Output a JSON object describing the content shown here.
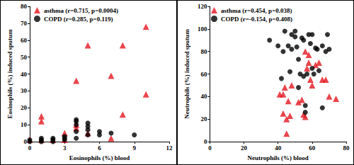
{
  "chart_data": [
    {
      "type": "scatter",
      "x_label": "Eosinophils (%) blood",
      "y_label": "Eosinophils (%) induced sputum",
      "xlim": [
        0,
        12
      ],
      "xticks": [
        0,
        3,
        6,
        9,
        12
      ],
      "ylim": [
        0,
        80
      ],
      "yticks": [
        0,
        10,
        20,
        30,
        40,
        50,
        60,
        70,
        80
      ],
      "grid": false,
      "legend": "upper left",
      "series": [
        {
          "name": "asthma (r=0.715, p=0.0004)",
          "color": "#e3171f",
          "marker": "triangle",
          "x": [
            10,
            5,
            8,
            4,
            7,
            10,
            8,
            1,
            1,
            4,
            3,
            7,
            0,
            1,
            2,
            3,
            4,
            5
          ],
          "values": [
            68,
            57,
            57,
            36,
            39,
            28,
            16,
            15,
            12,
            10,
            5,
            2,
            1,
            1,
            1,
            1,
            8,
            5
          ]
        },
        {
          "name": "COPD (r=0.285, p=0.119)",
          "color": "#000000",
          "marker": "circle",
          "x": [
            5,
            5,
            5,
            6,
            6,
            4,
            4,
            4,
            4,
            3,
            2,
            1,
            0,
            0,
            1,
            2,
            3,
            4,
            7,
            9,
            5,
            1,
            2,
            3
          ],
          "values": [
            11,
            9,
            7,
            6,
            4,
            13,
            12,
            10,
            6,
            3,
            2,
            1,
            0,
            1,
            0,
            1,
            1,
            2,
            5,
            4,
            4,
            2,
            0,
            2
          ]
        }
      ]
    },
    {
      "type": "scatter",
      "x_label": "Neutrophils (%) blood",
      "y_label": "Neutrophils (%) induced sputum",
      "xlim": [
        0,
        80
      ],
      "xticks": [
        0,
        20,
        40,
        60,
        80
      ],
      "ylim": [
        0,
        120
      ],
      "yticks": [
        0,
        20,
        40,
        60,
        80,
        100,
        120
      ],
      "grid": false,
      "legend": "upper left",
      "series": [
        {
          "name": "asthma (r=0.454, p=0.038)",
          "color": "#e3171f",
          "marker": "triangle",
          "x": [
            44,
            46,
            47,
            43,
            45,
            41,
            43,
            45,
            48,
            52,
            54,
            56,
            55,
            57,
            58,
            59,
            60,
            62,
            64,
            66,
            68,
            70,
            74,
            56,
            58
          ],
          "values": [
            48,
            36,
            23,
            25,
            20,
            42,
            42,
            7,
            50,
            35,
            37,
            22,
            24,
            65,
            70,
            55,
            50,
            68,
            70,
            55,
            55,
            40,
            38,
            80,
            77
          ]
        },
        {
          "name": "COPD (r=-0.154, p=0.408)",
          "color": "#000000",
          "marker": "circle",
          "x": [
            35,
            40,
            43,
            44,
            46,
            48,
            48,
            50,
            50,
            51,
            52,
            53,
            54,
            55,
            56,
            56,
            57,
            58,
            59,
            60,
            60,
            61,
            62,
            63,
            64,
            66,
            69,
            70,
            68,
            42,
            47,
            52,
            55,
            66
          ],
          "values": [
            90,
            85,
            80,
            98,
            85,
            95,
            82,
            98,
            93,
            84,
            73,
            60,
            92,
            58,
            32,
            26,
            60,
            95,
            87,
            65,
            95,
            60,
            83,
            82,
            63,
            30,
            95,
            82,
            80,
            56,
            62,
            48,
            90,
            85
          ]
        }
      ]
    }
  ]
}
